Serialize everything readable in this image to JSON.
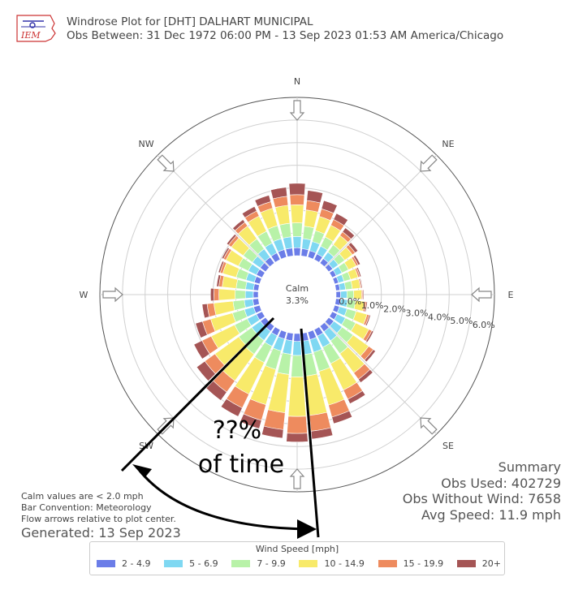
{
  "header": {
    "title": "Windrose Plot for [DHT] DALHART MUNICIPAL",
    "subtitle": "Obs Between: 31 Dec 1972 06:00 PM - 13 Sep 2023 01:53 AM America/Chicago",
    "logo_text": "IEM"
  },
  "calm": {
    "label": "Calm",
    "value": "3.3%"
  },
  "annotation": {
    "line1": "??%",
    "line2": "of time"
  },
  "summary": {
    "title": "Summary",
    "obs_used": "Obs Used: 402729",
    "obs_without_wind": "Obs Without Wind: 7658",
    "avg_speed": "Avg Speed: 11.9 mph"
  },
  "footnotes": {
    "line1": "Calm values are < 2.0 mph",
    "line2": "Bar Convention: Meteorology",
    "line3": "Flow arrows relative to plot center.",
    "generated": "Generated: 13 Sep 2023"
  },
  "legend": {
    "title": "Wind Speed [mph]"
  },
  "chart_data": {
    "type": "windrose",
    "direction_labels": [
      "N",
      "NE",
      "E",
      "SE",
      "SW",
      "W",
      "NW"
    ],
    "radial_ticks": [
      "0.0%",
      "1.0%",
      "2.0%",
      "3.0%",
      "4.0%",
      "5.0%",
      "6.0%"
    ],
    "rmax": 7.0,
    "bin_width_deg": 10,
    "directions_deg": [
      0,
      10,
      20,
      30,
      40,
      50,
      60,
      70,
      80,
      90,
      100,
      110,
      120,
      130,
      140,
      150,
      160,
      170,
      180,
      190,
      200,
      210,
      220,
      230,
      240,
      250,
      260,
      270,
      280,
      290,
      300,
      310,
      320,
      330,
      340,
      350
    ],
    "series": [
      {
        "name": "2 - 4.9",
        "color": "#6b7de8",
        "values": [
          0.35,
          0.32,
          0.3,
          0.28,
          0.25,
          0.22,
          0.2,
          0.18,
          0.18,
          0.2,
          0.22,
          0.22,
          0.25,
          0.28,
          0.3,
          0.32,
          0.35,
          0.35,
          0.35,
          0.33,
          0.32,
          0.3,
          0.28,
          0.28,
          0.28,
          0.28,
          0.25,
          0.22,
          0.22,
          0.25,
          0.28,
          0.3,
          0.32,
          0.33,
          0.35,
          0.35
        ]
      },
      {
        "name": "5 - 6.9",
        "color": "#7fd8f2",
        "values": [
          0.5,
          0.45,
          0.42,
          0.38,
          0.35,
          0.3,
          0.28,
          0.25,
          0.25,
          0.28,
          0.3,
          0.35,
          0.4,
          0.45,
          0.5,
          0.55,
          0.58,
          0.6,
          0.62,
          0.6,
          0.55,
          0.52,
          0.5,
          0.48,
          0.45,
          0.42,
          0.38,
          0.35,
          0.35,
          0.38,
          0.4,
          0.42,
          0.45,
          0.48,
          0.5,
          0.5
        ]
      },
      {
        "name": "7 - 9.9",
        "color": "#b8f2a8",
        "values": [
          0.6,
          0.55,
          0.5,
          0.45,
          0.4,
          0.35,
          0.32,
          0.3,
          0.3,
          0.3,
          0.35,
          0.42,
          0.5,
          0.6,
          0.7,
          0.8,
          0.88,
          0.95,
          0.95,
          0.9,
          0.85,
          0.8,
          0.75,
          0.7,
          0.62,
          0.55,
          0.5,
          0.45,
          0.42,
          0.45,
          0.48,
          0.5,
          0.55,
          0.58,
          0.6,
          0.6
        ]
      },
      {
        "name": "10 - 14.9",
        "color": "#f8ea6a",
        "values": [
          0.8,
          0.72,
          0.65,
          0.58,
          0.5,
          0.42,
          0.38,
          0.35,
          0.35,
          0.35,
          0.4,
          0.5,
          0.65,
          0.85,
          1.05,
          1.3,
          1.55,
          1.75,
          1.75,
          1.7,
          1.62,
          1.55,
          1.45,
          1.3,
          1.15,
          1.0,
          0.85,
          0.72,
          0.62,
          0.62,
          0.62,
          0.65,
          0.7,
          0.75,
          0.8,
          0.8
        ]
      },
      {
        "name": "15 - 19.9",
        "color": "#ee8b5e",
        "values": [
          0.45,
          0.42,
          0.35,
          0.28,
          0.2,
          0.15,
          0.1,
          0.08,
          0.05,
          0.05,
          0.08,
          0.1,
          0.15,
          0.25,
          0.35,
          0.45,
          0.55,
          0.7,
          0.75,
          0.75,
          0.72,
          0.68,
          0.62,
          0.55,
          0.45,
          0.38,
          0.3,
          0.22,
          0.15,
          0.12,
          0.12,
          0.15,
          0.2,
          0.25,
          0.3,
          0.4
        ]
      },
      {
        "name": "20+",
        "color": "#a55555",
        "values": [
          0.5,
          0.45,
          0.38,
          0.3,
          0.22,
          0.15,
          0.1,
          0.06,
          0.04,
          0.04,
          0.05,
          0.06,
          0.08,
          0.12,
          0.18,
          0.22,
          0.3,
          0.35,
          0.38,
          0.38,
          0.38,
          0.42,
          0.45,
          0.45,
          0.4,
          0.32,
          0.22,
          0.15,
          0.1,
          0.08,
          0.08,
          0.1,
          0.15,
          0.22,
          0.3,
          0.4
        ]
      }
    ]
  }
}
